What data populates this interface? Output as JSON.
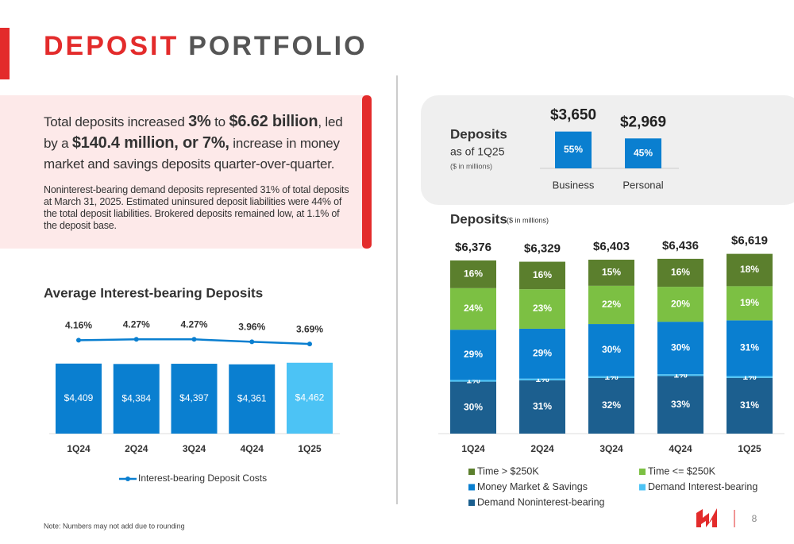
{
  "header": {
    "title_highlight": "DEPOSIT",
    "title_rest": "PORTFOLIO"
  },
  "summary": {
    "headline": [
      {
        "text": "Total deposits increased ",
        "bold": false
      },
      {
        "text": "3%",
        "bold": true
      },
      {
        "text": " to ",
        "bold": false
      },
      {
        "text": "$6.62 billion",
        "bold": true
      },
      {
        "text": ", led by a ",
        "bold": false
      },
      {
        "text": "$140.4 million, or 7%,",
        "bold": true
      },
      {
        "text": " increase in money market and savings deposits quarter-over-quarter.",
        "bold": false
      }
    ],
    "body": "Noninterest-bearing demand deposits represented 31% of total deposits at March 31, 2025. Estimated uninsured deposit liabilities were 44% of the total deposit liabilities. Brokered deposits remained low, at 1.1% of the deposit base."
  },
  "chart_data": [
    {
      "type": "bar_line",
      "title": "Average Interest-bearing Deposits",
      "categories": [
        "1Q24",
        "2Q24",
        "3Q24",
        "4Q24",
        "1Q25"
      ],
      "bars": {
        "values": [
          4409,
          4384,
          4397,
          4361,
          4462
        ],
        "value_labels": [
          "$4,409",
          "$4,384",
          "$4,397",
          "$4,361",
          "$4,462"
        ],
        "colors": [
          "#0a7fd0",
          "#0a7fd0",
          "#0a7fd0",
          "#0a7fd0",
          "#4cc3f5"
        ]
      },
      "line": {
        "name": "Interest-bearing Deposit Costs",
        "values": [
          4.16,
          4.27,
          4.27,
          3.96,
          3.69
        ],
        "value_labels": [
          "4.16%",
          "4.27%",
          "4.27%",
          "3.96%",
          "3.69%"
        ],
        "color": "#0a7fd0"
      }
    },
    {
      "type": "bar",
      "title": "Deposits",
      "subtitle": "as of 1Q25",
      "unit": "($ in millions)",
      "categories": [
        "Business",
        "Personal"
      ],
      "values": [
        3650,
        2969
      ],
      "value_labels": [
        "$3,650",
        "$2,969"
      ],
      "shares": [
        55,
        45
      ],
      "share_labels": [
        "55%",
        "45%"
      ],
      "color": "#0a7fd0"
    },
    {
      "type": "stacked_bar",
      "title": "Deposits",
      "unit": "($ in millions)",
      "categories": [
        "1Q24",
        "2Q24",
        "3Q24",
        "4Q24",
        "1Q25"
      ],
      "totals": {
        "values": [
          6376,
          6329,
          6403,
          6436,
          6619
        ],
        "value_labels": [
          "$6,376",
          "$6,329",
          "$6,403",
          "$6,436",
          "$6,619"
        ]
      },
      "series": [
        {
          "name": "Time > $250K",
          "color": "#5b7f2d",
          "values": [
            16,
            16,
            15,
            16,
            18
          ],
          "value_labels": [
            "16%",
            "16%",
            "15%",
            "16%",
            "18%"
          ]
        },
        {
          "name": "Time <= $250K",
          "color": "#7cc043",
          "values": [
            24,
            23,
            22,
            20,
            19
          ],
          "value_labels": [
            "24%",
            "23%",
            "22%",
            "20%",
            "19%"
          ]
        },
        {
          "name": "Money Market & Savings",
          "color": "#0a7fd0",
          "values": [
            29,
            29,
            30,
            30,
            31
          ],
          "value_labels": [
            "29%",
            "29%",
            "30%",
            "30%",
            "31%"
          ]
        },
        {
          "name": "Demand Interest-bearing",
          "color": "#4cc3f5",
          "values": [
            1,
            1,
            1,
            1,
            1
          ],
          "value_labels": [
            "1%",
            "1%",
            "1%",
            "1%",
            "1%"
          ]
        },
        {
          "name": "Demand Noninterest-bearing",
          "color": "#1c5f8f",
          "values": [
            30,
            31,
            32,
            33,
            31
          ],
          "value_labels": [
            "30%",
            "31%",
            "32%",
            "33%",
            "31%"
          ]
        }
      ],
      "legend": "bottom"
    }
  ],
  "footer": {
    "note": "Note: Numbers may not add due to rounding",
    "page_number": "8"
  }
}
